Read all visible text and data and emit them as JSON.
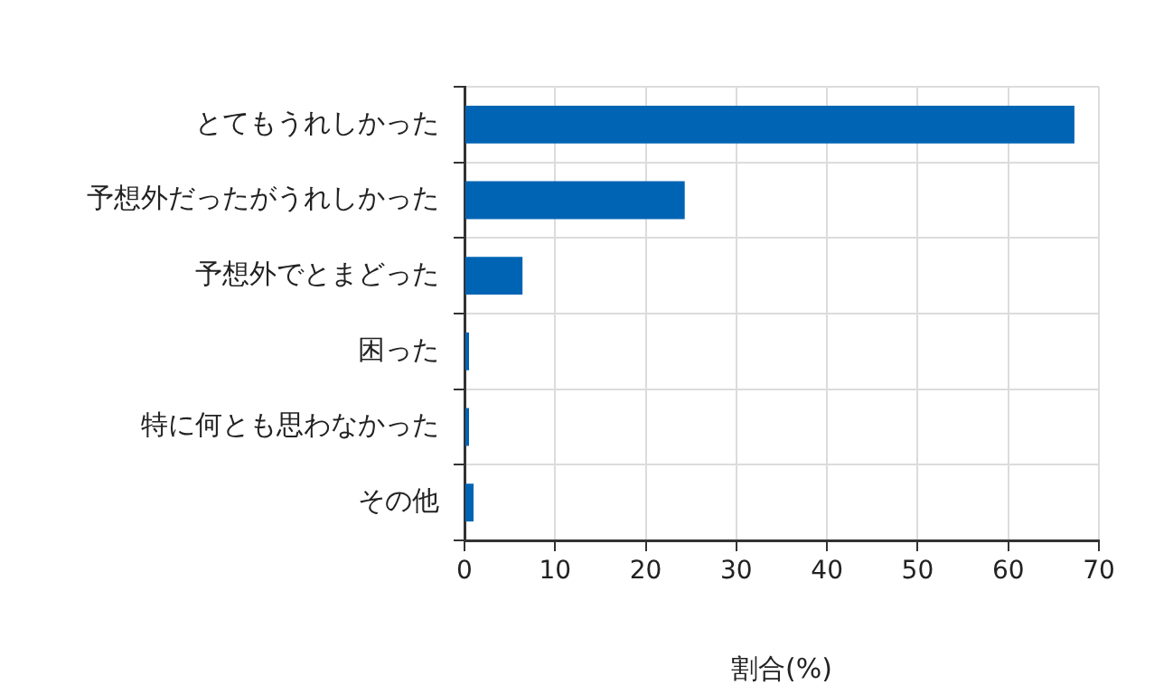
{
  "chart_data": {
    "type": "bar",
    "orientation": "horizontal",
    "xlabel": "割合(%)",
    "categories": [
      "とてもうれしかった",
      "予想外だったがうれしかった",
      "予想外でとまどった",
      "困った",
      "特に何とも思わなかった",
      "その他"
    ],
    "values": [
      67.3,
      24.3,
      6.4,
      0.5,
      0.5,
      1.0
    ],
    "color": "#0064b4",
    "xlim": [
      0,
      70
    ],
    "xticks": [
      0,
      10,
      20,
      30,
      40,
      50,
      60,
      70
    ],
    "grid": true
  }
}
